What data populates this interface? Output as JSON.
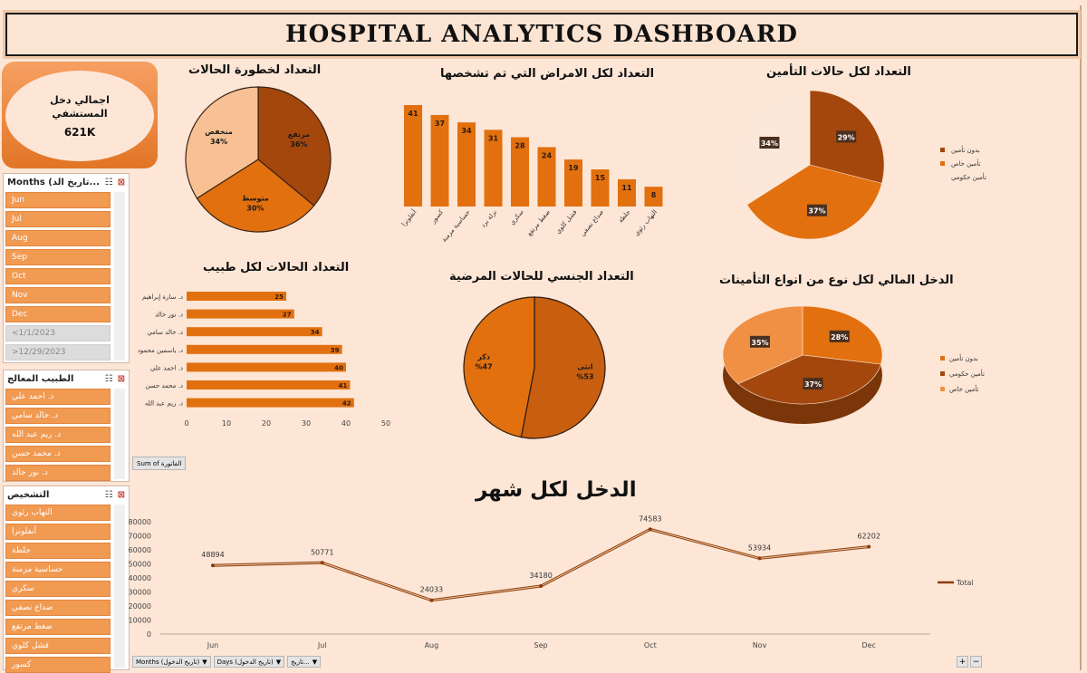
{
  "title": "HOSPITAL  ANALYTICS DASHBOARD",
  "kpi": {
    "label_line1": "اجمالي دخل",
    "label_line2": "المستشفي",
    "value": "621K"
  },
  "slicers": {
    "months": {
      "header": "Months (تاريخ الد...",
      "items": [
        "Jun",
        "Jul",
        "Aug",
        "Sep",
        "Oct",
        "Nov",
        "Dec",
        "<1/1/2023",
        ">12/29/2023"
      ]
    },
    "doctor": {
      "header": "الطبيب المعالج",
      "items": [
        "د. احمد علي",
        "د. خالد سامي",
        "د. ريم عبد الله",
        "د. محمد حسن",
        "د. نور خالد"
      ]
    },
    "diagnosis": {
      "header": "التشخيص",
      "items": [
        "التهاب رئوي",
        "أنفلونزا",
        "جلطة",
        "حساسية مزمنة",
        "سكري",
        "صداع نصفي",
        "ضغط مرتفع",
        "فشل كلوي",
        "كسور"
      ]
    }
  },
  "chart_titles": {
    "severity": "التعداد لخطورة الحالات",
    "diseases": "التعداد لكل الامراض التي تم تشخصها",
    "insurance_count": "التعداد لكل حالات التأمين",
    "doctors": "التعداد الحالات لكل طبيب",
    "gender": "التعداد الجنسي للحالات المرضية",
    "insurance_income": "الدخل المالي لكل نوع من انواع التأمينات",
    "monthly": "الدخل لكل شهر"
  },
  "buttons": {
    "sum": "Sum of الفاتورة"
  },
  "bottom_bar": {
    "months": "Months (تاريخ الدخول)",
    "days": "Days (تاريخ الدخول)",
    "date": "تاريخ..."
  },
  "colors": {
    "dark": "#a3470d",
    "mid": "#e2700f",
    "light": "#f7c193",
    "cream": "#fbe8d9",
    "orange": "#f09045",
    "bar": "#e2700f"
  },
  "chart_data": [
    {
      "id": "severity",
      "type": "pie",
      "slices": [
        {
          "label": "مرتفع",
          "value": 36,
          "text": "36%"
        },
        {
          "label": "متوسط",
          "value": 30,
          "text": "30%"
        },
        {
          "label": "منخفض",
          "value": 34,
          "text": "34%"
        }
      ]
    },
    {
      "id": "diseases",
      "type": "bar",
      "categories": [
        "أنفلونزا",
        "كسور",
        "حساسية مزمنة",
        "نزلة برد",
        "سكري",
        "ضغط مرتفع",
        "فشل كلوي",
        "صداع نصفي",
        "جلطة",
        "التهاب رئوي"
      ],
      "values": [
        41,
        37,
        34,
        31,
        28,
        24,
        19,
        15,
        11,
        8
      ]
    },
    {
      "id": "insurance_count",
      "type": "pie",
      "slices": [
        {
          "label": "بدون تأمين",
          "value": 29,
          "text": "29%"
        },
        {
          "label": "تأمين خاص",
          "value": 37,
          "text": "37%"
        },
        {
          "label": "تأمين حكومي",
          "value": 34,
          "text": "34%"
        }
      ],
      "legend": "right"
    },
    {
      "id": "doctors",
      "type": "bar",
      "orientation": "horizontal",
      "categories": [
        "د. سارة إبراهيم",
        "د. نور خالد",
        "د. خالد سامي",
        "د. ياسمين محمود",
        "د. احمد علي",
        "د. محمد حسن",
        "د. ريم عبد الله"
      ],
      "values": [
        25,
        27,
        34,
        39,
        40,
        41,
        42
      ],
      "xlim": [
        0,
        50
      ],
      "xticks": [
        0,
        10,
        20,
        30,
        40,
        50
      ]
    },
    {
      "id": "gender",
      "type": "pie",
      "slices": [
        {
          "label": "انثى",
          "value": 53,
          "text": "%53"
        },
        {
          "label": "ذكر",
          "value": 47,
          "text": "%47"
        }
      ]
    },
    {
      "id": "insurance_income",
      "type": "pie",
      "slices": [
        {
          "label": "بدون تأمين",
          "value": 28,
          "text": "28%"
        },
        {
          "label": "تأمين حكومي",
          "value": 37,
          "text": "37%"
        },
        {
          "label": "تأمين خاص",
          "value": 35,
          "text": "35%"
        }
      ],
      "legend": "right"
    },
    {
      "id": "monthly",
      "type": "line",
      "categories": [
        "Jun",
        "Jul",
        "Aug",
        "Sep",
        "Oct",
        "Nov",
        "Dec"
      ],
      "series": [
        {
          "name": "Total",
          "values": [
            48894,
            50771,
            24033,
            34180,
            74583,
            53934,
            62202
          ]
        }
      ],
      "ylim": [
        0,
        80000
      ],
      "yticks": [
        0,
        10000,
        20000,
        30000,
        40000,
        50000,
        60000,
        70000,
        80000
      ],
      "legend": "right"
    }
  ]
}
